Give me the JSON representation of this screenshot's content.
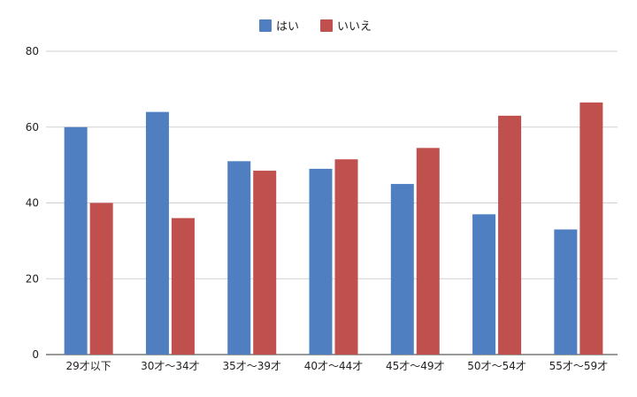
{
  "chart_data": {
    "type": "bar",
    "title": "",
    "xlabel": "",
    "ylabel": "",
    "categories": [
      "29才以下",
      "30才～34才",
      "35才～39才",
      "40才～44才",
      "45才～49才",
      "50才～54才",
      "55才～59才"
    ],
    "series": [
      {
        "name": "はい",
        "color": "#4f7fc0",
        "values": [
          60,
          64,
          51,
          49,
          45,
          37,
          33
        ]
      },
      {
        "name": "いいえ",
        "color": "#c0504d",
        "values": [
          40,
          36,
          48.5,
          51.5,
          54.5,
          63,
          66.5
        ]
      }
    ],
    "ylim": [
      0,
      80
    ],
    "yticks": [
      0,
      20,
      40,
      60,
      80
    ],
    "grid": true,
    "legend": "top-center"
  }
}
